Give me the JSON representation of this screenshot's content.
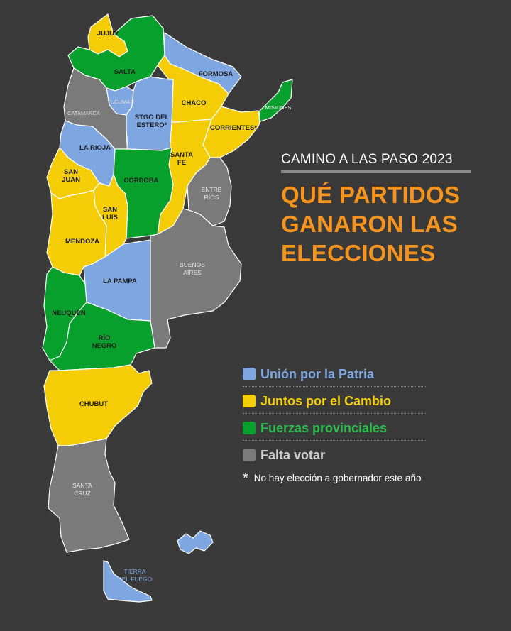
{
  "title": {
    "kicker": "CAMINO A LAS PASO 2023",
    "headline_lines": [
      "QUÉ PARTIDOS",
      "GANARON LAS",
      "ELECCIONES"
    ]
  },
  "legend": {
    "items": [
      {
        "label": "Unión por la Patria",
        "color": "#7ea6e0"
      },
      {
        "label": "Juntos por el Cambio",
        "color": "#f5cd07"
      },
      {
        "label": "Fuerzas provinciales",
        "color": "#08a02c"
      },
      {
        "label": "Falta votar",
        "color": "#7a7a7a"
      }
    ],
    "note_symbol": "*",
    "note": "No hay elección a gobernador este año"
  },
  "provinces": [
    {
      "name": "JUJUY",
      "party": "Juntos por el Cambio"
    },
    {
      "name": "SALTA",
      "party": "Fuerzas provinciales"
    },
    {
      "name": "FORMOSA",
      "party": "Unión por la Patria"
    },
    {
      "name": "CHACO",
      "party": "Juntos por el Cambio"
    },
    {
      "name": "MISIONES",
      "party": "Fuerzas provinciales"
    },
    {
      "name": "TUCUMÁN",
      "party": "Unión por la Patria"
    },
    {
      "name": "CATAMARCA",
      "party": "Falta votar"
    },
    {
      "name": "STGO DEL ESTERO*",
      "party": "Unión por la Patria"
    },
    {
      "name": "CORRIENTES*",
      "party": "Juntos por el Cambio"
    },
    {
      "name": "LA RIOJA",
      "party": "Unión por la Patria"
    },
    {
      "name": "SANTA FE",
      "party": "Juntos por el Cambio"
    },
    {
      "name": "SAN JUAN",
      "party": "Juntos por el Cambio"
    },
    {
      "name": "CÓRDOBA",
      "party": "Fuerzas provinciales"
    },
    {
      "name": "ENTRE RÍOS",
      "party": "Falta votar"
    },
    {
      "name": "SAN LUIS",
      "party": "Juntos por el Cambio"
    },
    {
      "name": "MENDOZA",
      "party": "Juntos por el Cambio"
    },
    {
      "name": "BUENOS AIRES",
      "party": "Falta votar"
    },
    {
      "name": "LA PAMPA",
      "party": "Unión por la Patria"
    },
    {
      "name": "NEUQUÉN",
      "party": "Fuerzas provinciales"
    },
    {
      "name": "RÍO NEGRO",
      "party": "Fuerzas provinciales"
    },
    {
      "name": "CHUBUT",
      "party": "Juntos por el Cambio"
    },
    {
      "name": "SANTA CRUZ",
      "party": "Falta votar"
    },
    {
      "name": "TIERRA DEL FUEGO",
      "party": "Unión por la Patria"
    }
  ],
  "map_labels": {
    "jujuy": [
      "JUJUY"
    ],
    "salta": [
      "SALTA"
    ],
    "formosa": [
      "FORMOSA"
    ],
    "chaco": [
      "CHACO"
    ],
    "misiones": [
      "MISIONES"
    ],
    "tucuman": [
      "TUCUMÁN"
    ],
    "catamarca": [
      "CATAMARCA"
    ],
    "santiago": [
      "STGO DEL",
      "ESTERO*"
    ],
    "corrientes": [
      "CORRIENTES*"
    ],
    "larioja": [
      "LA RIOJA"
    ],
    "santafe": [
      "SANTA",
      "FE"
    ],
    "sanjuan": [
      "SAN",
      "JUAN"
    ],
    "cordoba": [
      "CÓRDOBA"
    ],
    "entrerios": [
      "ENTRE",
      "RÍOS"
    ],
    "sanluis": [
      "SAN",
      "LUIS"
    ],
    "mendoza": [
      "MENDOZA"
    ],
    "buenosaires": [
      "BUENOS",
      "AIRES"
    ],
    "lapampa": [
      "LA PAMPA"
    ],
    "neuquen": [
      "NEUQUÉN"
    ],
    "rionegro": [
      "RÍO",
      "NEGRO"
    ],
    "chubut": [
      "CHUBUT"
    ],
    "santacruz": [
      "SANTA",
      "CRUZ"
    ],
    "tierradelfuego": [
      "TIERRA",
      "DEL FUEGO"
    ]
  },
  "colors": {
    "background": "#3a3a3a",
    "accent": "#f7941d",
    "union": "#7ea6e0",
    "juntos": "#f5cd07",
    "provinciales": "#08a02c",
    "falta": "#7a7a7a"
  }
}
